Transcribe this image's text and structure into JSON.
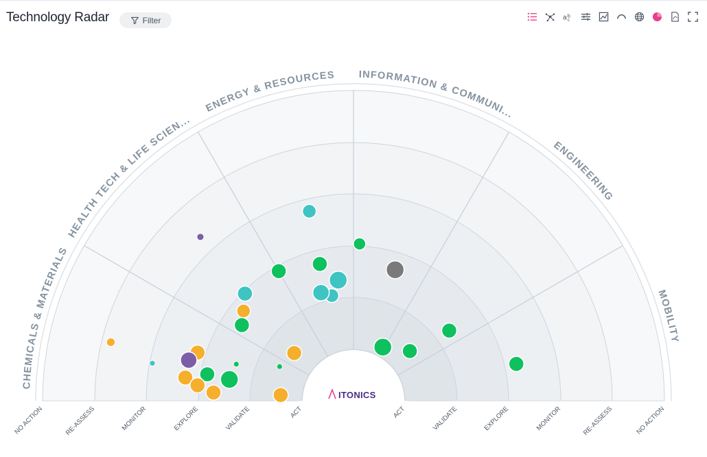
{
  "header": {
    "title": "Technology Radar",
    "filter_label": "Filter"
  },
  "toolbar": {
    "icons": [
      "list-icon",
      "network-icon",
      "typography-icon",
      "sliders-icon",
      "chart-icon",
      "gauge-icon",
      "globe-icon",
      "pie-chart-icon",
      "pdf-icon",
      "fullscreen-icon"
    ],
    "active": "pie-chart-icon",
    "active_color": "#e83e8c",
    "list_color": "#e83e8c"
  },
  "logo": {
    "text": "ITONICS"
  },
  "chart_data": {
    "type": "scatter",
    "title": "Technology Radar",
    "segments": [
      "CHEMICALS & MATERIALS",
      "HEALTH TECH & LIFE SCIEN...",
      "ENERGY & RESOURCES",
      "INFORMATION & COMMUNI...",
      "ENGINEERING",
      "MOBILITY"
    ],
    "rings_left": [
      "NO ACTION",
      "RE-ASSESS",
      "MONITOR",
      "EXPLORE",
      "VALIDATE",
      "ACT"
    ],
    "rings_right": [
      "ACT",
      "VALIDATE",
      "EXPLORE",
      "MONITOR",
      "RE-ASSESS",
      "NO ACTION"
    ],
    "colors": {
      "green": "#0ec15e",
      "teal": "#3fc3c3",
      "orange": "#f6ae2d",
      "purple": "#7b5ea7",
      "gray": "#7a7a7a"
    },
    "points": [
      {
        "r": 0.722,
        "angle_deg": 133.0,
        "size": 5,
        "color": "purple"
      },
      {
        "r": 0.627,
        "angle_deg": 103.1,
        "size": 10,
        "color": "teal"
      },
      {
        "r": 0.506,
        "angle_deg": 87.8,
        "size": 9,
        "color": "green"
      },
      {
        "r": 0.454,
        "angle_deg": 103.8,
        "size": 11,
        "color": "green"
      },
      {
        "r": 0.482,
        "angle_deg": 119.9,
        "size": 11,
        "color": "green"
      },
      {
        "r": 0.491,
        "angle_deg": 135.3,
        "size": 11,
        "color": "teal"
      },
      {
        "r": 0.392,
        "angle_deg": 97.2,
        "size": 13,
        "color": "teal"
      },
      {
        "r": 0.346,
        "angle_deg": 101.6,
        "size": 10,
        "color": "teal"
      },
      {
        "r": 0.364,
        "angle_deg": 106.7,
        "size": 12,
        "color": "teal"
      },
      {
        "r": 0.457,
        "angle_deg": 140.7,
        "size": 10,
        "color": "orange"
      },
      {
        "r": 0.434,
        "angle_deg": 145.8,
        "size": 11,
        "color": "green"
      },
      {
        "r": 0.245,
        "angle_deg": 141.1,
        "size": 11,
        "color": "orange"
      },
      {
        "r": 0.262,
        "angle_deg": 155.1,
        "size": 4,
        "color": "green"
      },
      {
        "r": 0.395,
        "angle_deg": 162.6,
        "size": 4,
        "color": "green"
      },
      {
        "r": 0.525,
        "angle_deg": 162.8,
        "size": 11,
        "color": "orange"
      },
      {
        "r": 0.546,
        "angle_deg": 166.1,
        "size": 12,
        "color": "purple"
      },
      {
        "r": 0.478,
        "angle_deg": 169.7,
        "size": 11,
        "color": "green"
      },
      {
        "r": 0.405,
        "angle_deg": 170.2,
        "size": 13,
        "color": "green"
      },
      {
        "r": 0.546,
        "angle_deg": 172.1,
        "size": 11,
        "color": "orange"
      },
      {
        "r": 0.504,
        "angle_deg": 174.3,
        "size": 11,
        "color": "orange"
      },
      {
        "r": 0.451,
        "angle_deg": 176.6,
        "size": 11,
        "color": "orange"
      },
      {
        "r": 0.235,
        "angle_deg": 175.4,
        "size": 11,
        "color": "orange"
      },
      {
        "r": 0.658,
        "angle_deg": 169.4,
        "size": 4,
        "color": "teal"
      },
      {
        "r": 0.803,
        "angle_deg": 166.4,
        "size": 6,
        "color": "orange"
      },
      {
        "r": 0.443,
        "angle_deg": 72.4,
        "size": 13,
        "color": "gray"
      },
      {
        "r": 0.197,
        "angle_deg": 61.4,
        "size": 13,
        "color": "green"
      },
      {
        "r": 0.242,
        "angle_deg": 41.5,
        "size": 11,
        "color": "green"
      },
      {
        "r": 0.382,
        "angle_deg": 36.3,
        "size": 11,
        "color": "green"
      },
      {
        "r": 0.537,
        "angle_deg": 12.8,
        "size": 11,
        "color": "green"
      }
    ]
  }
}
